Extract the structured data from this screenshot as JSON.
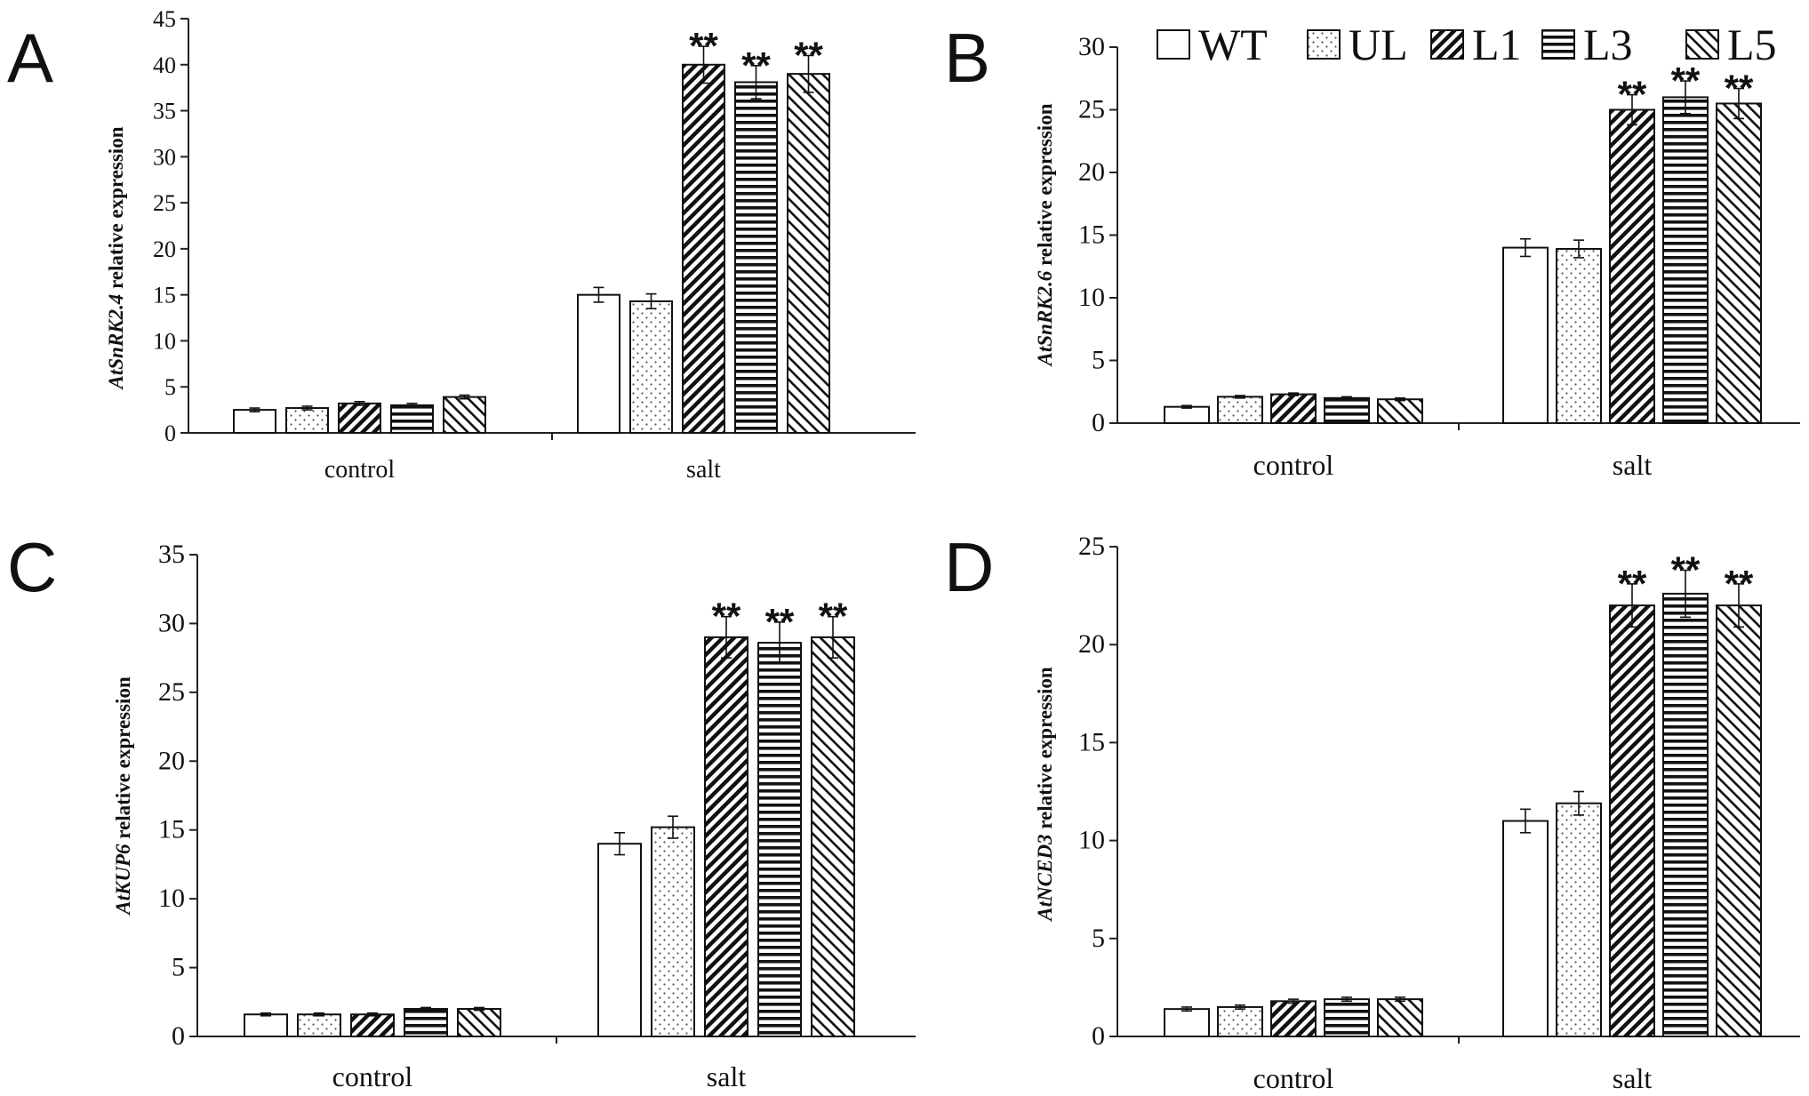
{
  "legend": [
    "WT",
    "UL",
    "L1",
    "L3",
    "L5"
  ],
  "chart_data": [
    {
      "type": "bar",
      "panel": "A",
      "categories": [
        "control",
        "salt"
      ],
      "series": [
        {
          "name": "WT",
          "values": [
            2.5,
            15.0
          ],
          "errors": [
            0.2,
            0.8
          ]
        },
        {
          "name": "UL",
          "values": [
            2.7,
            14.3
          ],
          "errors": [
            0.2,
            0.8
          ]
        },
        {
          "name": "L1",
          "values": [
            3.2,
            40.0
          ],
          "errors": [
            0.2,
            2.0
          ]
        },
        {
          "name": "L3",
          "values": [
            3.0,
            38.1
          ],
          "errors": [
            0.2,
            1.8
          ]
        },
        {
          "name": "L5",
          "values": [
            3.9,
            39.0
          ],
          "errors": [
            0.2,
            2.0
          ]
        }
      ],
      "significance": [
        "",
        "**"
      ],
      "ylabel_gene": "AtSnRK2.4",
      "ylabel_rest": " relative expression",
      "ylim": [
        0,
        45
      ],
      "yticks": [
        0,
        5,
        10,
        15,
        20,
        25,
        30,
        35,
        40,
        45
      ]
    },
    {
      "type": "bar",
      "panel": "B",
      "categories": [
        "control",
        "salt"
      ],
      "series": [
        {
          "name": "WT",
          "values": [
            1.3,
            14.0
          ],
          "errors": [
            0.1,
            0.7
          ]
        },
        {
          "name": "UL",
          "values": [
            2.1,
            13.9
          ],
          "errors": [
            0.1,
            0.7
          ]
        },
        {
          "name": "L1",
          "values": [
            2.3,
            25.0
          ],
          "errors": [
            0.1,
            1.2
          ]
        },
        {
          "name": "L3",
          "values": [
            2.0,
            26.0
          ],
          "errors": [
            0.1,
            1.3
          ]
        },
        {
          "name": "L5",
          "values": [
            1.9,
            25.5
          ],
          "errors": [
            0.1,
            1.2
          ]
        }
      ],
      "significance": [
        "",
        "**"
      ],
      "ylabel_gene": "AtSnRK2.6",
      "ylabel_rest": " relative expression",
      "ylim": [
        0,
        30
      ],
      "yticks": [
        0,
        5,
        10,
        15,
        20,
        25,
        30
      ]
    },
    {
      "type": "bar",
      "panel": "C",
      "categories": [
        "control",
        "salt"
      ],
      "series": [
        {
          "name": "WT",
          "values": [
            1.6,
            14.0
          ],
          "errors": [
            0.1,
            0.8
          ]
        },
        {
          "name": "UL",
          "values": [
            1.6,
            15.2
          ],
          "errors": [
            0.1,
            0.8
          ]
        },
        {
          "name": "L1",
          "values": [
            1.6,
            29.0
          ],
          "errors": [
            0.1,
            1.5
          ]
        },
        {
          "name": "L3",
          "values": [
            2.0,
            28.6
          ],
          "errors": [
            0.1,
            1.5
          ]
        },
        {
          "name": "L5",
          "values": [
            2.0,
            29.0
          ],
          "errors": [
            0.1,
            1.5
          ]
        }
      ],
      "significance": [
        "",
        "**"
      ],
      "ylabel_gene": "AtKUP6",
      "ylabel_rest": "  relative expression",
      "ylim": [
        0,
        35
      ],
      "yticks": [
        0,
        5,
        10,
        15,
        20,
        25,
        30,
        35
      ]
    },
    {
      "type": "bar",
      "panel": "D",
      "categories": [
        "control",
        "salt"
      ],
      "series": [
        {
          "name": "WT",
          "values": [
            1.4,
            11.0
          ],
          "errors": [
            0.1,
            0.6
          ]
        },
        {
          "name": "UL",
          "values": [
            1.5,
            11.9
          ],
          "errors": [
            0.1,
            0.6
          ]
        },
        {
          "name": "L1",
          "values": [
            1.8,
            22.0
          ],
          "errors": [
            0.1,
            1.1
          ]
        },
        {
          "name": "L3",
          "values": [
            1.9,
            22.6
          ],
          "errors": [
            0.1,
            1.2
          ]
        },
        {
          "name": "L5",
          "values": [
            1.9,
            22.0
          ],
          "errors": [
            0.1,
            1.1
          ]
        }
      ],
      "significance": [
        "",
        "**"
      ],
      "ylabel_gene": "AtNCED3",
      "ylabel_rest": " relative expression",
      "ylim": [
        0,
        25
      ],
      "yticks": [
        0,
        5,
        10,
        15,
        20,
        25
      ]
    }
  ]
}
